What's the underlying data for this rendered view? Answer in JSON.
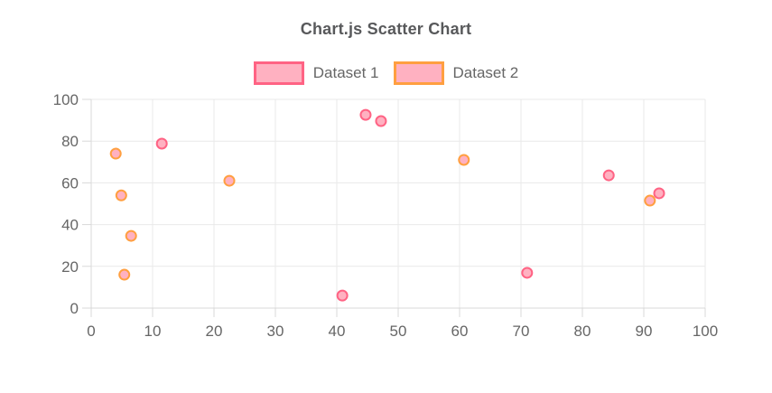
{
  "title": {
    "text": "Chart.js Scatter Chart",
    "color": "#58595b"
  },
  "legend": {
    "items": [
      {
        "label": "Dataset 1",
        "border_color": "#ff6384",
        "fill_color": "#ffb1c1"
      },
      {
        "label": "Dataset 2",
        "border_color": "#ff9f40",
        "fill_color": "#ffb1c1"
      }
    ]
  },
  "chart_data": {
    "type": "scatter",
    "title": "Chart.js Scatter Chart",
    "xlabel": "",
    "ylabel": "",
    "xlim": [
      0,
      100
    ],
    "ylim": [
      0,
      100
    ],
    "x_ticks": [
      0,
      10,
      20,
      30,
      40,
      50,
      60,
      70,
      80,
      90,
      100
    ],
    "y_ticks": [
      0,
      20,
      40,
      60,
      80,
      100
    ],
    "grid": true,
    "legend_position": "top",
    "series": [
      {
        "name": "Dataset 1",
        "border_color": "#ff6384",
        "fill_color": "#ffb1c1",
        "points": [
          {
            "x": 11.5,
            "y": 78.8
          },
          {
            "x": 40.9,
            "y": 6.0
          },
          {
            "x": 44.7,
            "y": 92.6
          },
          {
            "x": 47.2,
            "y": 89.6
          },
          {
            "x": 71.0,
            "y": 16.9
          },
          {
            "x": 84.3,
            "y": 63.6
          },
          {
            "x": 92.5,
            "y": 55.0
          }
        ]
      },
      {
        "name": "Dataset 2",
        "border_color": "#ff9f40",
        "fill_color": "#ffb1c1",
        "points": [
          {
            "x": 4.0,
            "y": 74.0
          },
          {
            "x": 4.9,
            "y": 54.0
          },
          {
            "x": 5.4,
            "y": 16.0
          },
          {
            "x": 6.5,
            "y": 34.6
          },
          {
            "x": 22.5,
            "y": 61.0
          },
          {
            "x": 60.7,
            "y": 71.0
          },
          {
            "x": 91.0,
            "y": 51.5
          }
        ]
      }
    ],
    "colors": {
      "grid": "#e9e9e9",
      "axis_border": "#d9d9d9",
      "tick_text": "#666666"
    }
  }
}
